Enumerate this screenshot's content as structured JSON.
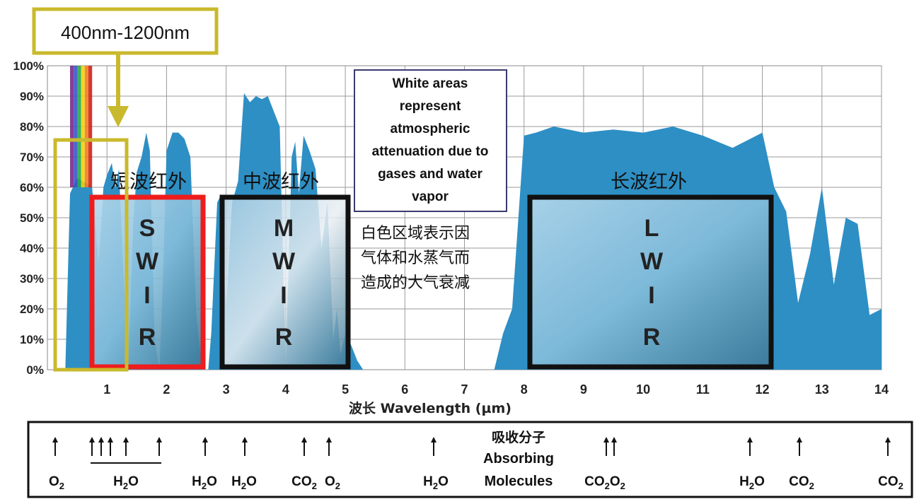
{
  "chart_data": {
    "type": "area",
    "xlabel": "波长 Wavelength (µm)",
    "xlim": [
      0,
      14
    ],
    "ylim": [
      0,
      100
    ],
    "x_ticks": [
      "1",
      "2",
      "3",
      "4",
      "5",
      "6",
      "7",
      "8",
      "9",
      "10",
      "11",
      "12",
      "13",
      "14"
    ],
    "y_ticks": [
      "0%",
      "10%",
      "20%",
      "30%",
      "40%",
      "50%",
      "60%",
      "70%",
      "80%",
      "90%",
      "100%"
    ],
    "grid": true,
    "colors": {
      "transmission": "#2e8fc4",
      "swir_box": "#ee1c1c",
      "range_box": "#c9b92c",
      "frame": "#111111",
      "visible_stripes": [
        "#7a2a8c",
        "#3a55c8",
        "#2aa84a",
        "#f0d010",
        "#f08020",
        "#d02020"
      ]
    },
    "series": [
      {
        "x": [
          0.3,
          0.38,
          0.5,
          0.6,
          0.75,
          0.86,
          0.94,
          1.0,
          1.08,
          1.14,
          1.2,
          1.28,
          1.36,
          1.44,
          1.5,
          1.58,
          1.66,
          1.72,
          1.8,
          1.88,
          1.94,
          2.0,
          2.1,
          2.2,
          2.3,
          2.4,
          2.5,
          2.6,
          2.7,
          2.75,
          2.85,
          2.9,
          3.0,
          3.1,
          3.2,
          3.3,
          3.4,
          3.5,
          3.6,
          3.7,
          3.8,
          3.9,
          4.0,
          4.1,
          4.16,
          4.22,
          4.3,
          4.4,
          4.5,
          4.6,
          4.7,
          4.8,
          4.86,
          4.92,
          5.0,
          5.1,
          5.2,
          5.3,
          5.4,
          5.5,
          7.5,
          7.65,
          7.8,
          8.0,
          8.2,
          8.5,
          9.0,
          9.5,
          10.0,
          10.5,
          11.0,
          11.5,
          12.0,
          12.2,
          12.4,
          12.6,
          12.8,
          13.0,
          13.2,
          13.4,
          13.6,
          13.8,
          14.0
        ],
        "values": [
          0,
          58,
          63,
          62,
          60,
          35,
          60,
          64,
          68,
          60,
          66,
          30,
          2,
          48,
          65,
          70,
          78,
          72,
          10,
          0,
          30,
          72,
          78,
          78,
          76,
          70,
          18,
          0,
          0,
          12,
          55,
          57,
          20,
          55,
          62,
          91,
          88,
          90,
          89,
          90,
          85,
          80,
          0,
          70,
          75,
          58,
          77,
          72,
          66,
          40,
          55,
          10,
          20,
          5,
          12,
          8,
          3,
          0,
          0,
          0,
          0,
          12,
          20,
          77,
          78,
          80,
          78,
          79,
          78,
          80,
          77,
          73,
          78,
          60,
          52,
          22,
          38,
          60,
          28,
          50,
          48,
          18,
          20
        ]
      }
    ],
    "annotations": {
      "range_label": "400nm-1200nm",
      "bands": [
        {
          "zh": "短波红外",
          "letters": [
            "S",
            "W",
            "I",
            "R"
          ]
        },
        {
          "zh": "中波红外",
          "letters": [
            "M",
            "W",
            "I",
            "R"
          ]
        },
        {
          "zh": "长波红外",
          "letters": [
            "L",
            "W",
            "I",
            "R"
          ]
        }
      ],
      "note_en": [
        "White areas",
        "represent",
        "atmospheric",
        "attenuation due to",
        "gases and water",
        "vapor"
      ],
      "note_zh": [
        "白色区域表示因",
        "气体和水蒸气而",
        "造成的大气衰减"
      ]
    },
    "absorbing_molecules": {
      "title_zh": "吸收分子",
      "title_en": [
        "Absorbing",
        "Molecules"
      ],
      "labels": [
        {
          "base": "O",
          "sub": "2"
        },
        {
          "base": "H",
          "sub": "2",
          "tail": "O"
        },
        {
          "base": "H",
          "sub": "2",
          "tail": "O"
        },
        {
          "base": "H",
          "sub": "2",
          "tail": "O"
        },
        {
          "base": "CO",
          "sub": "2"
        },
        {
          "base": "O",
          "sub": "2"
        },
        {
          "base": "H",
          "sub": "2",
          "tail": "O"
        },
        {
          "base": "CO",
          "sub": "2",
          "tail": "O",
          "tail_sub": "2"
        },
        {
          "base": "H",
          "sub": "2",
          "tail": "O"
        },
        {
          "base": "CO",
          "sub": "2"
        },
        {
          "base": "CO",
          "sub": "2"
        }
      ]
    }
  }
}
